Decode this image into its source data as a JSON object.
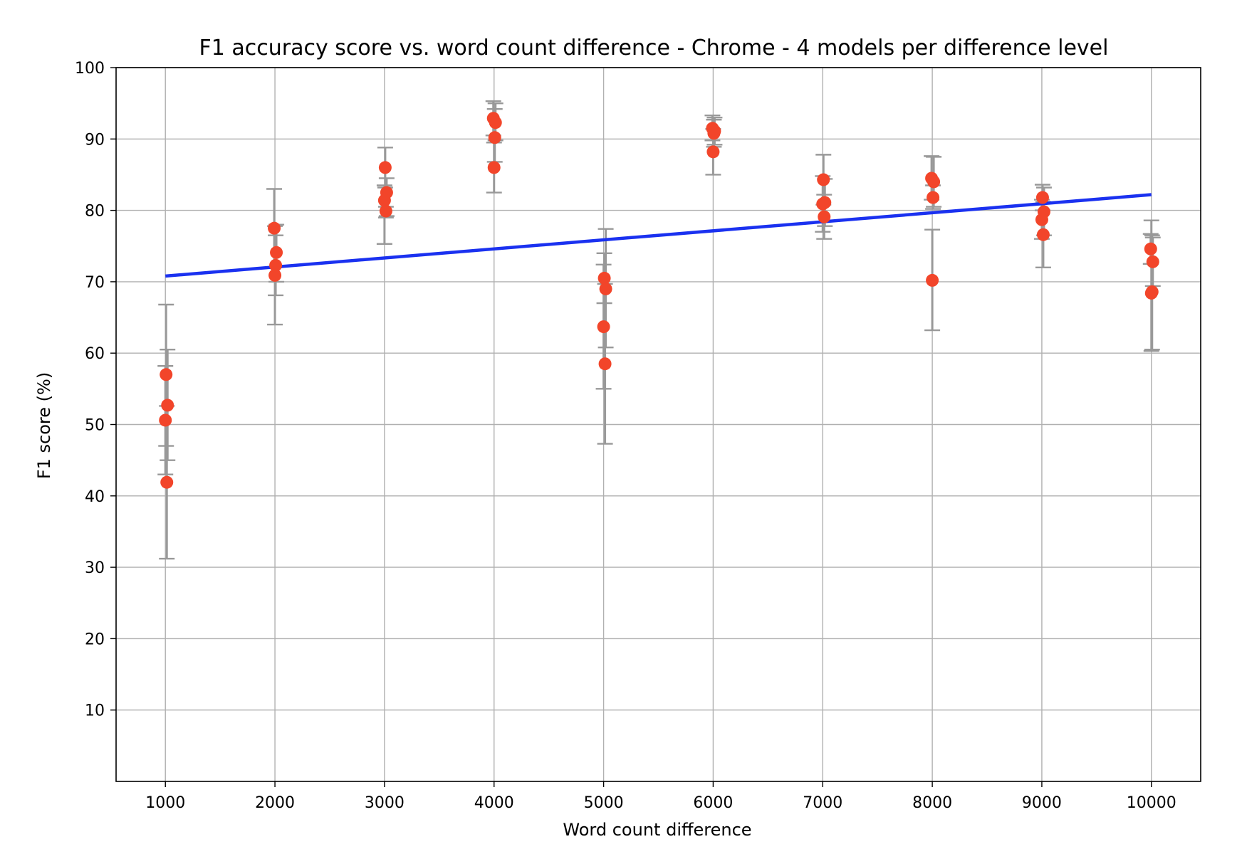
{
  "chart_data": {
    "type": "scatter",
    "title": "F1 accuracy score vs. word count difference - Chrome - 4 models per difference level",
    "xlabel": "Word count difference",
    "ylabel": "F1 score (%)",
    "xlim": [
      550,
      10450
    ],
    "ylim": [
      0,
      100
    ],
    "xticks": [
      1000,
      2000,
      3000,
      4000,
      5000,
      6000,
      7000,
      8000,
      9000,
      10000
    ],
    "yticks": [
      10,
      20,
      30,
      40,
      50,
      60,
      70,
      80,
      90,
      100
    ],
    "grid": true,
    "colors": {
      "points": "#f2452a",
      "errorbars": "#999999",
      "trend": "#1a31f0",
      "grid": "#b0b0b0"
    },
    "series": [
      {
        "type": "scatter-errorbar",
        "points": [
          {
            "x": 1000,
            "y": 57.0,
            "lo": 47.0,
            "hi": 66.8
          },
          {
            "x": 1000,
            "y": 52.7,
            "lo": 45.0,
            "hi": 60.5
          },
          {
            "x": 1000,
            "y": 50.6,
            "lo": 43.0,
            "hi": 58.2
          },
          {
            "x": 1000,
            "y": 41.9,
            "lo": 31.2,
            "hi": 52.6
          },
          {
            "x": 2000,
            "y": 77.5,
            "lo": 72.0,
            "hi": 83.0
          },
          {
            "x": 2000,
            "y": 74.1,
            "lo": 70.0,
            "hi": 78.0
          },
          {
            "x": 2000,
            "y": 72.3,
            "lo": 68.1,
            "hi": 76.5
          },
          {
            "x": 2000,
            "y": 70.9,
            "lo": 64.0,
            "hi": 77.8
          },
          {
            "x": 3000,
            "y": 86.0,
            "lo": 83.2,
            "hi": 88.8
          },
          {
            "x": 3000,
            "y": 82.5,
            "lo": 79.2,
            "hi": 84.5
          },
          {
            "x": 3000,
            "y": 81.4,
            "lo": 75.3,
            "hi": 83.5
          },
          {
            "x": 3000,
            "y": 79.9,
            "lo": 79.0,
            "hi": 80.5
          },
          {
            "x": 4000,
            "y": 92.9,
            "lo": 90.5,
            "hi": 95.3
          },
          {
            "x": 4000,
            "y": 92.3,
            "lo": 89.8,
            "hi": 95.0
          },
          {
            "x": 4000,
            "y": 90.2,
            "lo": 86.8,
            "hi": 94.2
          },
          {
            "x": 4000,
            "y": 86.0,
            "lo": 82.5,
            "hi": 89.5
          },
          {
            "x": 5000,
            "y": 70.5,
            "lo": 67.0,
            "hi": 74.0
          },
          {
            "x": 5000,
            "y": 69.0,
            "lo": 60.8,
            "hi": 77.4
          },
          {
            "x": 5000,
            "y": 63.7,
            "lo": 55.0,
            "hi": 72.4
          },
          {
            "x": 5000,
            "y": 58.5,
            "lo": 47.3,
            "hi": 69.7
          },
          {
            "x": 6000,
            "y": 91.5,
            "lo": 89.8,
            "hi": 93.3
          },
          {
            "x": 6000,
            "y": 91.1,
            "lo": 89.2,
            "hi": 93.0
          },
          {
            "x": 6000,
            "y": 90.8,
            "lo": 88.9,
            "hi": 92.7
          },
          {
            "x": 6000,
            "y": 88.2,
            "lo": 85.0,
            "hi": 91.4
          },
          {
            "x": 7000,
            "y": 84.3,
            "lo": 80.8,
            "hi": 87.8
          },
          {
            "x": 7000,
            "y": 81.1,
            "lo": 77.8,
            "hi": 84.4
          },
          {
            "x": 7000,
            "y": 80.9,
            "lo": 77.0,
            "hi": 84.8
          },
          {
            "x": 7000,
            "y": 79.1,
            "lo": 76.0,
            "hi": 82.2
          },
          {
            "x": 8000,
            "y": 84.5,
            "lo": 81.5,
            "hi": 87.6
          },
          {
            "x": 8000,
            "y": 84.0,
            "lo": 80.5,
            "hi": 87.5
          },
          {
            "x": 8000,
            "y": 81.8,
            "lo": 80.2,
            "hi": 83.5
          },
          {
            "x": 8000,
            "y": 70.2,
            "lo": 63.2,
            "hi": 77.3
          },
          {
            "x": 9000,
            "y": 81.8,
            "lo": 80.0,
            "hi": 83.6
          },
          {
            "x": 9000,
            "y": 79.8,
            "lo": 76.5,
            "hi": 83.2
          },
          {
            "x": 9000,
            "y": 78.7,
            "lo": 76.0,
            "hi": 81.5
          },
          {
            "x": 9000,
            "y": 76.6,
            "lo": 72.0,
            "hi": 81.2
          },
          {
            "x": 10000,
            "y": 74.6,
            "lo": 72.5,
            "hi": 76.7
          },
          {
            "x": 10000,
            "y": 72.8,
            "lo": 69.4,
            "hi": 76.2
          },
          {
            "x": 10000,
            "y": 68.6,
            "lo": 60.5,
            "hi": 76.5
          },
          {
            "x": 10000,
            "y": 68.4,
            "lo": 60.3,
            "hi": 78.6
          }
        ]
      },
      {
        "type": "line",
        "x": [
          1000,
          10000
        ],
        "y": [
          70.8,
          82.2
        ]
      }
    ]
  }
}
